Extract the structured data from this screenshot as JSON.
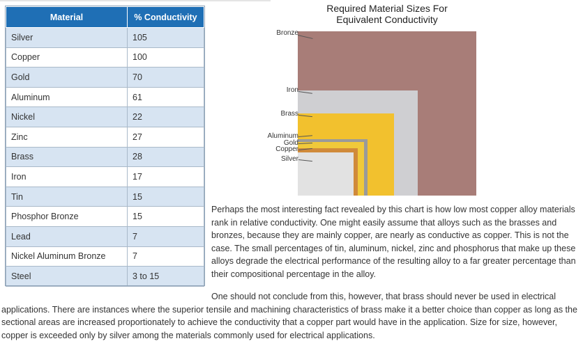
{
  "table": {
    "headers": [
      "Material",
      "% Conductivity"
    ],
    "rows": [
      {
        "material": "Silver",
        "conductivity": "105"
      },
      {
        "material": "Copper",
        "conductivity": "100"
      },
      {
        "material": "Gold",
        "conductivity": "70"
      },
      {
        "material": "Aluminum",
        "conductivity": "61"
      },
      {
        "material": "Nickel",
        "conductivity": "22"
      },
      {
        "material": "Zinc",
        "conductivity": "27"
      },
      {
        "material": "Brass",
        "conductivity": "28"
      },
      {
        "material": "Iron",
        "conductivity": "17"
      },
      {
        "material": "Tin",
        "conductivity": "15"
      },
      {
        "material": "Phosphor Bronze",
        "conductivity": "15"
      },
      {
        "material": "Lead",
        "conductivity": "7"
      },
      {
        "material": "Nickel Aluminum Bronze",
        "conductivity": "7"
      },
      {
        "material": "Steel",
        "conductivity": "3 to 15"
      }
    ]
  },
  "figure": {
    "title_line1": "Required Material Sizes For",
    "title_line2": "Equivalent Conductivity",
    "labels": {
      "bronze": "Bronze",
      "iron": "Iron",
      "brass": "Brass",
      "aluminum": "Aluminum",
      "gold": "Gold",
      "copper": "Copper",
      "silver": "Silver"
    },
    "colors": {
      "bronze": "#a87d78",
      "iron": "#cfcfd2",
      "brass": "#f2c12e",
      "aluminum": "#9a9a9a",
      "gold": "#f0c93a",
      "copper": "#d08a3a",
      "silver": "#e2e2e2"
    }
  },
  "text": {
    "paragraph1": "Perhaps the most interesting fact revealed by this chart is how low most copper alloy materials rank in relative conductivity. One might easily assume that alloys such as the brasses and bronzes, because they are mainly copper, are nearly as conductive as copper. This is not the case. The small percentages of tin, aluminum, nickel, zinc and phosphorus that make up these alloys degrade the electrical performance of the resulting alloy to a far greater percentage than their compositional percentage in the alloy.",
    "paragraph2": "One should not conclude from this, however, that brass should never be used in electrical applications. There are instances where the superior tensile and machining characteristics of brass make it a better choice than copper as long as the sectional areas are increased proportionately to achieve the conductivity that a copper part would have in the application. Size for size, however, copper is exceeded only by silver among the materials commonly used for electrical applications."
  }
}
